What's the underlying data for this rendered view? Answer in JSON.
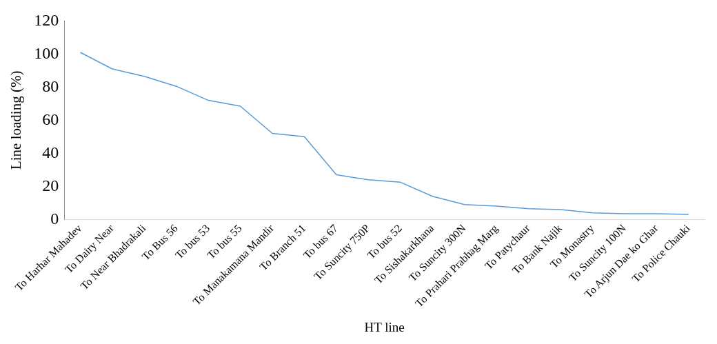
{
  "chart_data": {
    "type": "line",
    "xlabel": "HT line",
    "ylabel": "Line loading (%)",
    "categories": [
      "To Harhar Mahadev",
      "To Dairy Near",
      "To Near Bhadrakali",
      "To Bus 56",
      "To bus 53",
      "To bus 55",
      "To Manakamana Mandir",
      "To Branch 51",
      "To bus 67",
      "To Suncity 750P",
      "To bus 52",
      "To Sishakarkhana",
      "To Suncity 300N",
      "To Prahari Prabhag Marg",
      "To Patychaur",
      "To Bank Najik",
      "To Monastry",
      "To Suncity 100N",
      "To Arjun Dae ko Ghar",
      "To Police Chauki"
    ],
    "series": [
      {
        "color": "#5b9bd5",
        "values": [
          101,
          91,
          86.5,
          80.5,
          72,
          68.5,
          52,
          50,
          27,
          24,
          22.5,
          14,
          9,
          8,
          6.5,
          6,
          4,
          3.5,
          3.5,
          3
        ]
      }
    ],
    "ylim": [
      0,
      120
    ],
    "yticks": [
      0,
      20,
      40,
      60,
      80,
      100,
      120
    ],
    "grid": false,
    "legend": false
  }
}
